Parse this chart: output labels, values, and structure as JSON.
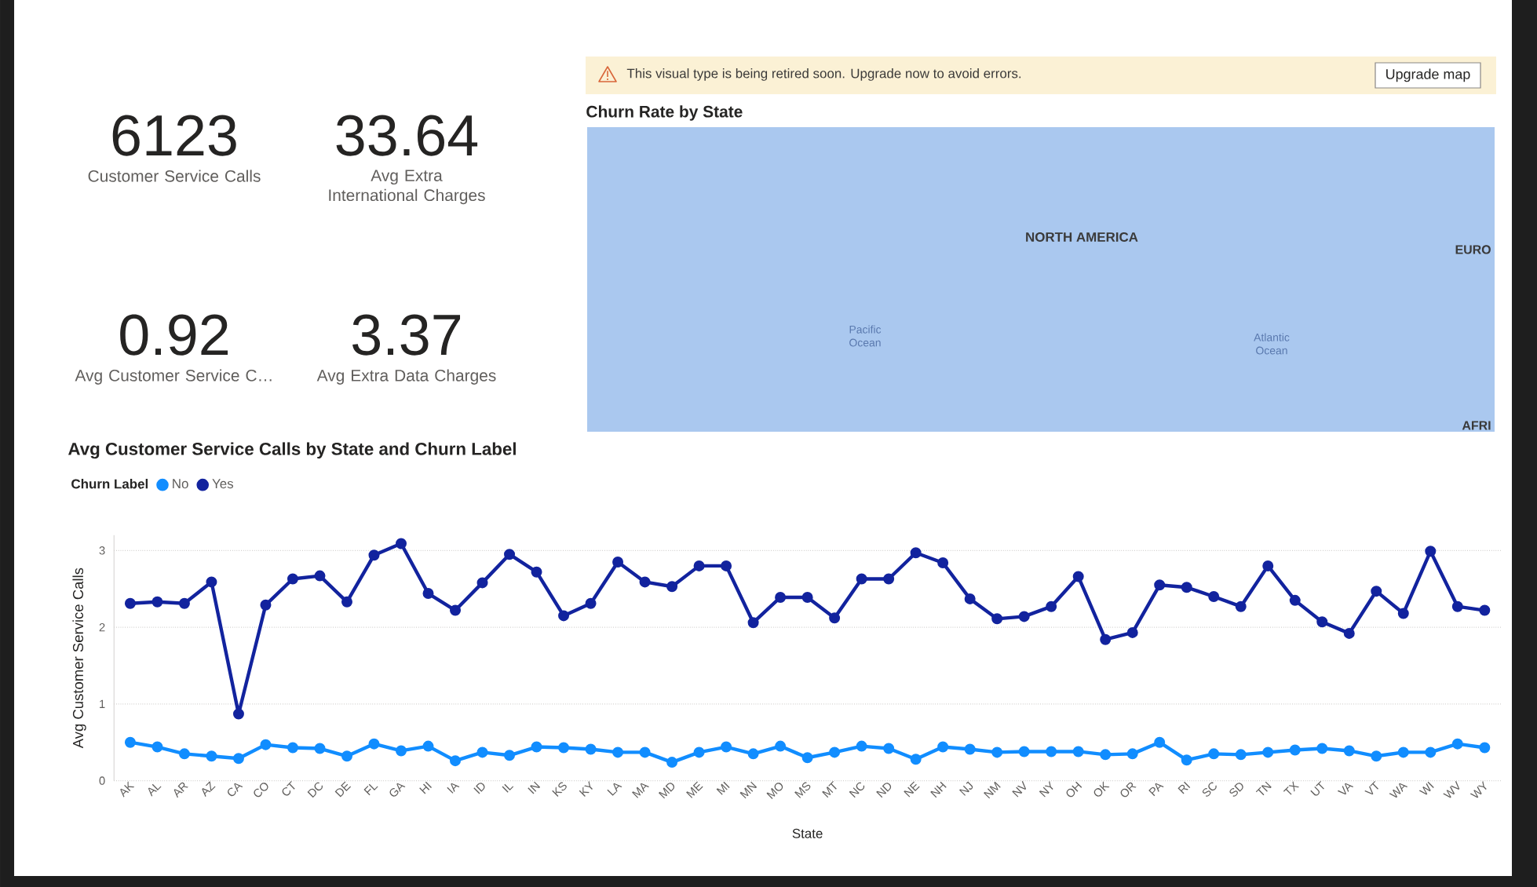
{
  "chart_data": [
    {
      "type": "other",
      "categories": [
        "Customer Service Calls",
        "Avg Extra International Charges",
        "Avg Customer Service C…",
        "Avg Extra Data Charges"
      ],
      "values": [
        6123,
        33.64,
        0.92,
        3.37
      ],
      "data_labels": true
    },
    {
      "type": "other",
      "title": "Churn Rate by State",
      "annotations": [
        "This visual type is being retired soon. Upgrade now to avoid errors.",
        "Upgrade map",
        "NORTH AMERICA",
        "Pacific Ocean",
        "Atlantic Ocean",
        "EURO",
        "AFRI"
      ]
    },
    {
      "type": "line",
      "title": "Avg Customer Service Calls by State and Churn Label",
      "xlabel": "State",
      "ylabel": "Avg Customer Service Calls",
      "legend_title": "Churn Label",
      "categories": [
        "AK",
        "AL",
        "AR",
        "AZ",
        "CA",
        "CO",
        "CT",
        "DC",
        "DE",
        "FL",
        "GA",
        "HI",
        "IA",
        "ID",
        "IL",
        "IN",
        "KS",
        "KY",
        "LA",
        "MA",
        "MD",
        "ME",
        "MI",
        "MN",
        "MO",
        "MS",
        "MT",
        "NC",
        "ND",
        "NE",
        "NH",
        "NJ",
        "NM",
        "NV",
        "NY",
        "OH",
        "OK",
        "OR",
        "PA",
        "RI",
        "SC",
        "SD",
        "TN",
        "TX",
        "UT",
        "VA",
        "VT",
        "WA",
        "WI",
        "WV",
        "WY"
      ],
      "series": [
        {
          "name": "No",
          "color": "#118dff",
          "values": [
            0.5,
            0.44,
            0.35,
            0.32,
            0.29,
            0.47,
            0.43,
            0.42,
            0.32,
            0.48,
            0.39,
            0.45,
            0.26,
            0.37,
            0.33,
            0.44,
            0.43,
            0.41,
            0.37,
            0.37,
            0.24,
            0.37,
            0.44,
            0.35,
            0.45,
            0.3,
            0.37,
            0.45,
            0.42,
            0.28,
            0.44,
            0.41,
            0.37,
            0.38,
            0.38,
            0.38,
            0.34,
            0.35,
            0.5,
            0.27,
            0.35,
            0.34,
            0.37,
            0.4,
            0.42,
            0.39,
            0.32,
            0.37,
            0.37,
            0.48,
            0.43
          ]
        },
        {
          "name": "Yes",
          "color": "#12239e",
          "values": [
            2.31,
            2.33,
            2.31,
            2.59,
            0.87,
            2.29,
            2.63,
            2.67,
            2.33,
            2.94,
            3.09,
            2.44,
            2.22,
            2.58,
            2.95,
            2.72,
            2.15,
            2.31,
            2.85,
            2.59,
            2.53,
            2.8,
            2.8,
            2.06,
            2.39,
            2.39,
            2.12,
            2.63,
            2.63,
            2.97,
            2.84,
            2.37,
            2.11,
            2.14,
            2.27,
            2.66,
            1.84,
            1.93,
            2.55,
            2.52,
            2.4,
            2.27,
            2.8,
            2.35,
            2.07,
            1.92,
            2.47,
            2.18,
            2.99,
            2.27,
            2.22
          ]
        }
      ],
      "ylim": [
        0,
        3.2
      ],
      "yticks": [
        0,
        1,
        2,
        3
      ],
      "grid": "y",
      "legend": "top left",
      "marker": "circle"
    }
  ]
}
